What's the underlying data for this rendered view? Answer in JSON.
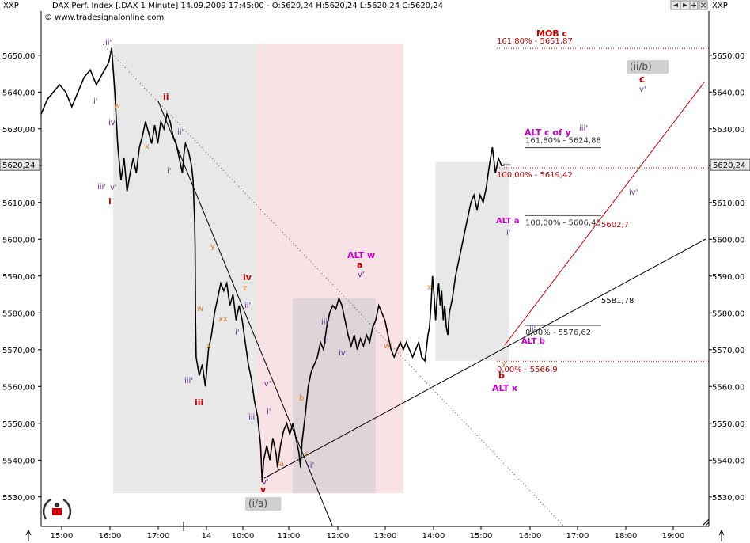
{
  "header": {
    "symbol_left": "XXP",
    "symbol_right": "XXP",
    "title": "DAX Perf. Index [.DAX  1 Minute] 14.09.2009 17:45:00 - O:5620,24 H:5620,24 L:5620,24 C:5620,24",
    "copyright": "© www.tradesignalonline.com"
  },
  "toolbar": {
    "icons": [
      "arrow-left-icon",
      "arrow-right-icon",
      "zoom-in-icon",
      "zoom-out-icon",
      "close-icon"
    ]
  },
  "chart_data": {
    "type": "line",
    "title": "DAX Perf. Index [.DAX  1 Minute]",
    "ylim": [
      5522,
      5662
    ],
    "y_ticks": [
      5530,
      5540,
      5550,
      5560,
      5570,
      5580,
      5590,
      5600,
      5610,
      5620,
      5630,
      5640,
      5650
    ],
    "y_tick_labels": [
      "5530,00",
      "5540,00",
      "5550,00",
      "5560,00",
      "5570,00",
      "5580,00",
      "5590,00",
      "5600,00",
      "5610,00",
      "5620,00",
      "5630,00",
      "5640,00",
      "5650,00"
    ],
    "x_ticks": [
      "15:00",
      "16:00",
      "17:00",
      "14",
      "10:00",
      "11:00",
      "12:00",
      "13:00",
      "14:00",
      "15:00",
      "16:00",
      "17:00",
      "18:00",
      "19:00"
    ],
    "last_price_label": "5620,24",
    "last_price": 5620.24,
    "series": [
      {
        "values": [
          [
            0.0,
            5634
          ],
          [
            4.0,
            5638
          ],
          [
            8.0,
            5640
          ],
          [
            12.0,
            5642
          ],
          [
            16.0,
            5640
          ],
          [
            20.0,
            5636
          ],
          [
            24.0,
            5640
          ],
          [
            28.0,
            5644
          ],
          [
            32.0,
            5646
          ],
          [
            36.0,
            5642
          ],
          [
            40.0,
            5645
          ],
          [
            44.0,
            5648
          ],
          [
            46.0,
            5652
          ],
          [
            48.0,
            5640
          ],
          [
            50.0,
            5625
          ],
          [
            52.0,
            5616
          ],
          [
            54.0,
            5622
          ],
          [
            56.0,
            5613
          ],
          [
            58.0,
            5618
          ],
          [
            60.0,
            5622
          ],
          [
            62.0,
            5618
          ],
          [
            64.0,
            5625
          ],
          [
            66.0,
            5628
          ],
          [
            68.0,
            5632
          ],
          [
            70.0,
            5629
          ],
          [
            72.0,
            5626
          ],
          [
            74.0,
            5631
          ],
          [
            76.0,
            5626
          ],
          [
            78.0,
            5632
          ],
          [
            80.0,
            5630
          ],
          [
            82.0,
            5634
          ],
          [
            84.0,
            5632
          ],
          [
            86.0,
            5628
          ],
          [
            88.0,
            5626
          ],
          [
            90.0,
            5622
          ],
          [
            92.0,
            5618
          ],
          [
            93.0,
            5623
          ],
          [
            94.0,
            5626
          ],
          [
            96.0,
            5624
          ],
          [
            98.0,
            5620
          ],
          [
            99.0,
            5616
          ],
          [
            100.0,
            5605
          ],
          [
            100.3,
            5598
          ],
          [
            100.6,
            5578
          ],
          [
            101.0,
            5568
          ],
          [
            103.0,
            5563
          ],
          [
            105.0,
            5566
          ],
          [
            107.0,
            5560
          ],
          [
            109.0,
            5570
          ],
          [
            111.0,
            5574
          ],
          [
            113.0,
            5580
          ],
          [
            115.0,
            5584
          ],
          [
            117.0,
            5588
          ],
          [
            119.0,
            5586
          ],
          [
            121.0,
            5588
          ],
          [
            123.0,
            5582
          ],
          [
            125.0,
            5585
          ],
          [
            127.0,
            5578
          ],
          [
            129.0,
            5582
          ],
          [
            131.0,
            5578
          ],
          [
            133.0,
            5572
          ],
          [
            135.0,
            5566
          ],
          [
            137.0,
            5562
          ],
          [
            139.0,
            5556
          ],
          [
            141.0,
            5552
          ],
          [
            143.0,
            5544
          ],
          [
            144.0,
            5534
          ],
          [
            145.0,
            5540
          ],
          [
            147.0,
            5544
          ],
          [
            149.0,
            5540
          ],
          [
            151.0,
            5546
          ],
          [
            153.0,
            5542
          ],
          [
            154.0,
            5538
          ],
          [
            156.0,
            5544
          ],
          [
            158.0,
            5548
          ],
          [
            160.0,
            5550
          ],
          [
            162.0,
            5547
          ],
          [
            164.0,
            5550
          ],
          [
            166.0,
            5546
          ],
          [
            168.0,
            5542
          ],
          [
            169.0,
            5538
          ],
          [
            170.0,
            5545
          ],
          [
            172.0,
            5552
          ],
          [
            174.0,
            5560
          ],
          [
            176.0,
            5564
          ],
          [
            178.0,
            5566
          ],
          [
            180.0,
            5568
          ],
          [
            182.0,
            5572
          ],
          [
            184.0,
            5570
          ],
          [
            186.0,
            5576
          ],
          [
            188.0,
            5580
          ],
          [
            190.0,
            5582
          ],
          [
            192.0,
            5581
          ],
          [
            194.0,
            5584
          ],
          [
            196.0,
            5582
          ],
          [
            198.0,
            5578
          ],
          [
            200.0,
            5574
          ],
          [
            202.0,
            5571
          ],
          [
            204.0,
            5574
          ],
          [
            206.0,
            5570
          ],
          [
            208.0,
            5573
          ],
          [
            210.0,
            5571
          ],
          [
            212.0,
            5574
          ],
          [
            214.0,
            5572
          ],
          [
            216.0,
            5576
          ],
          [
            218.0,
            5578
          ],
          [
            220.0,
            5582
          ],
          [
            222.0,
            5580
          ],
          [
            224.0,
            5578
          ],
          [
            226.0,
            5574
          ],
          [
            228.0,
            5570
          ],
          [
            230.0,
            5568
          ],
          [
            232.0,
            5570
          ],
          [
            234.0,
            5572
          ],
          [
            236.0,
            5570
          ],
          [
            238.0,
            5572
          ],
          [
            240.0,
            5570
          ],
          [
            242.0,
            5568
          ],
          [
            244.0,
            5570
          ],
          [
            246.0,
            5572
          ],
          [
            248.0,
            5568
          ],
          [
            250.0,
            5567
          ],
          [
            251.0,
            5570
          ],
          [
            252.0,
            5574
          ],
          [
            253.0,
            5576
          ],
          [
            254.0,
            5582
          ],
          [
            255.0,
            5590
          ],
          [
            256.0,
            5585
          ],
          [
            257.0,
            5578
          ],
          [
            258.0,
            5584
          ],
          [
            259.0,
            5588
          ],
          [
            260.0,
            5582
          ],
          [
            261.0,
            5586
          ],
          [
            262.0,
            5578
          ],
          [
            263.0,
            5582
          ],
          [
            264.0,
            5576
          ],
          [
            265.0,
            5574
          ],
          [
            266.0,
            5580
          ],
          [
            268.0,
            5584
          ],
          [
            270.0,
            5590
          ],
          [
            272.0,
            5594
          ],
          [
            274.0,
            5598
          ],
          [
            276.0,
            5602
          ],
          [
            278.0,
            5606
          ],
          [
            280.0,
            5610
          ],
          [
            282.0,
            5612
          ],
          [
            284.0,
            5608
          ],
          [
            286.0,
            5612
          ],
          [
            288.0,
            5610
          ],
          [
            290.0,
            5614
          ],
          [
            292.0,
            5620
          ],
          [
            294.0,
            5625
          ],
          [
            296.0,
            5618
          ],
          [
            298.0,
            5622
          ],
          [
            300.0,
            5620
          ],
          [
            302.0,
            5620.24
          ]
        ]
      }
    ],
    "shaded_zones": [
      {
        "name": "grey-zone-1",
        "x0": 47,
        "x1": 141,
        "y0": 5531,
        "y1": 5653,
        "color": "#e6e6e6"
      },
      {
        "name": "pink-zone",
        "x0": 141,
        "x1": 236,
        "y0": 5531,
        "y1": 5653,
        "color": "#f7dfe2"
      },
      {
        "name": "grey-zone-2",
        "x0": 164,
        "x1": 218,
        "y0": 5531,
        "y1": 5584,
        "color": "#dcd3d6"
      },
      {
        "name": "grey-zone-3",
        "x0": 257,
        "x1": 305,
        "y0": 5567,
        "y1": 5621,
        "color": "#e6e6e6"
      }
    ],
    "horizontal_levels": [
      {
        "label": "161,80% - 5651,87",
        "value": 5651.87,
        "color": "#cc0000"
      },
      {
        "label": "100,00% - 5619,42",
        "value": 5619.42,
        "color": "#cc0000"
      },
      {
        "label": "0,00% - 5566,9",
        "value": 5566.9,
        "color": "#cc0000"
      },
      {
        "label": "161,80% - 5624,88",
        "value": 5624.88,
        "color": "#333333"
      },
      {
        "label": "100,00% - 5606,45",
        "value": 5606.45,
        "color": "#333333"
      },
      {
        "label": "0,00% - 5576,62",
        "value": 5576.62,
        "color": "#333333"
      }
    ],
    "trend_lines": [
      {
        "label": "5602,7",
        "color": "#cc0000"
      },
      {
        "label": "5581,78",
        "color": "#000000"
      }
    ],
    "wave_labels": [
      {
        "text": "MOB c",
        "color": "#cc0000"
      },
      {
        "text": "(ii/b)",
        "color": "#444444"
      },
      {
        "text": "c",
        "color": "#cc0000"
      },
      {
        "text": "v'",
        "color": "#5b2c8e"
      },
      {
        "text": "ALT c of y",
        "color": "#cc00cc"
      },
      {
        "text": "iii'",
        "color": "#5b2c8e"
      },
      {
        "text": "iv'",
        "color": "#5b2c8e"
      },
      {
        "text": "ALT a",
        "color": "#cc00cc"
      },
      {
        "text": "i'",
        "color": "#5b2c8e"
      },
      {
        "text": "ALT b",
        "color": "#cc00cc"
      },
      {
        "text": "ii'",
        "color": "#5b2c8e"
      },
      {
        "text": "b",
        "color": "#cc0000"
      },
      {
        "text": "ALT x",
        "color": "#cc00cc"
      },
      {
        "text": "y",
        "color": "#d4822a"
      },
      {
        "text": "ALT w",
        "color": "#cc00cc"
      },
      {
        "text": "a",
        "color": "#cc0000"
      },
      {
        "text": "v'",
        "color": "#5b2c8e"
      },
      {
        "text": "x",
        "color": "#d4822a"
      },
      {
        "text": "iii'",
        "color": "#5b2c8e"
      },
      {
        "text": "i'",
        "color": "#5b2c8e"
      },
      {
        "text": "iv'",
        "color": "#5b2c8e"
      },
      {
        "text": "w'",
        "color": "#d4822a"
      },
      {
        "text": "b",
        "color": "#d4822a"
      },
      {
        "text": "c",
        "color": "#d4822a"
      },
      {
        "text": "ii'",
        "color": "#5b2c8e"
      },
      {
        "text": "a",
        "color": "#d4822a"
      },
      {
        "text": "v",
        "color": "#cc0000"
      },
      {
        "text": "v'",
        "color": "#5b2c8e"
      },
      {
        "text": "(i/a)",
        "color": "#444444"
      },
      {
        "text": "iv'",
        "color": "#5b2c8e"
      },
      {
        "text": "iii'",
        "color": "#5b2c8e"
      },
      {
        "text": "i'",
        "color": "#5b2c8e"
      },
      {
        "text": "iv",
        "color": "#cc0000"
      },
      {
        "text": "z",
        "color": "#d4822a"
      },
      {
        "text": "ii'",
        "color": "#5b2c8e"
      },
      {
        "text": "i'",
        "color": "#5b2c8e"
      },
      {
        "text": "y",
        "color": "#d4822a"
      },
      {
        "text": "w",
        "color": "#d4822a"
      },
      {
        "text": "xx",
        "color": "#d4822a"
      },
      {
        "text": "x",
        "color": "#d4822a"
      },
      {
        "text": "iii'",
        "color": "#5b2c8e"
      },
      {
        "text": "iii",
        "color": "#cc0000"
      },
      {
        "text": "ii",
        "color": "#cc0000"
      },
      {
        "text": "ii'",
        "color": "#5b2c8e"
      },
      {
        "text": "i'",
        "color": "#5b2c8e"
      },
      {
        "text": "w",
        "color": "#d4822a"
      },
      {
        "text": "iv'",
        "color": "#5b2c8e"
      },
      {
        "text": "x",
        "color": "#d4822a"
      },
      {
        "text": "ii'",
        "color": "#5b2c8e"
      },
      {
        "text": "i'",
        "color": "#5b2c8e"
      },
      {
        "text": "iii'",
        "color": "#5b2c8e"
      },
      {
        "text": "v'",
        "color": "#5b2c8e"
      },
      {
        "text": "i",
        "color": "#cc0000"
      }
    ]
  },
  "colors": {
    "price": "#000000",
    "fib_red": "#cc0000",
    "fib_dark": "#333333",
    "axis": "#000000",
    "alt_label": "#cc00cc",
    "wave_purple": "#5b2c8e",
    "wave_orange": "#d4822a",
    "wave_red": "#cc0000"
  }
}
